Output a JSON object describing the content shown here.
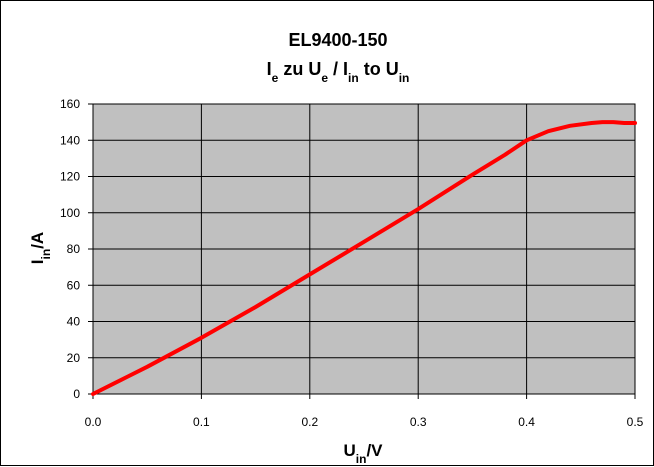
{
  "chart_data": {
    "type": "line",
    "title": "EL9400-150",
    "subtitle": {
      "parts": [
        {
          "text": "I",
          "sub": false
        },
        {
          "text": "e",
          "sub": true
        },
        {
          "text": " zu U",
          "sub": false
        },
        {
          "text": "e",
          "sub": true
        },
        {
          "text": " / I",
          "sub": false
        },
        {
          "text": "in",
          "sub": true
        },
        {
          "text": " to U",
          "sub": false
        },
        {
          "text": "in",
          "sub": true
        }
      ]
    },
    "xlabel": {
      "base": "U",
      "sub": "in",
      "suffix": "/V"
    },
    "ylabel": {
      "base": "I",
      "sub": "in",
      "suffix": "/A"
    },
    "xlim": [
      0,
      0.5
    ],
    "ylim": [
      0,
      160
    ],
    "x_ticks": [
      "0.0",
      "0.1",
      "0.2",
      "0.3",
      "0.4",
      "0.5"
    ],
    "y_ticks": [
      "0",
      "20",
      "40",
      "60",
      "80",
      "100",
      "120",
      "140",
      "160"
    ],
    "grid": true,
    "plot_background": "#c0c0c0",
    "series": [
      {
        "color": "#ff0000",
        "x": [
          0.0,
          0.05,
          0.1,
          0.15,
          0.2,
          0.25,
          0.3,
          0.35,
          0.38,
          0.4,
          0.42,
          0.44,
          0.46,
          0.47,
          0.48,
          0.49,
          0.5
        ],
        "y": [
          0,
          15,
          31,
          48,
          66,
          84,
          102,
          121,
          132,
          140,
          145,
          148,
          149.5,
          150,
          150,
          149.5,
          149.5
        ]
      }
    ]
  }
}
